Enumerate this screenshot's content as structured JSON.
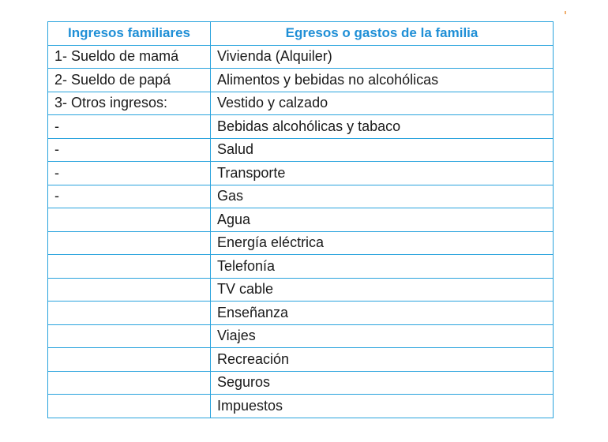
{
  "table": {
    "headers": [
      "Ingresos familiares",
      "Egresos o gastos de la familia"
    ],
    "rows": [
      [
        "1- Sueldo de mamá",
        "Vivienda (Alquiler)"
      ],
      [
        "2- Sueldo de papá",
        "Alimentos y bebidas no alcohólicas"
      ],
      [
        "3- Otros ingresos:",
        "Vestido y calzado"
      ],
      [
        "-",
        "Bebidas alcohólicas y tabaco"
      ],
      [
        "-",
        "Salud"
      ],
      [
        "-",
        "Transporte"
      ],
      [
        "-",
        "Gas"
      ],
      [
        "",
        "Agua"
      ],
      [
        "",
        "Energía eléctrica"
      ],
      [
        "",
        "Telefonía"
      ],
      [
        "",
        "TV cable"
      ],
      [
        "",
        "Enseñanza"
      ],
      [
        "",
        "Viajes"
      ],
      [
        "",
        "Recreación"
      ],
      [
        "",
        "Seguros"
      ],
      [
        "",
        "Impuestos"
      ]
    ]
  },
  "colors": {
    "border": "#29a3dd",
    "header_text": "#1f8fd6",
    "body_text": "#1a1a1a"
  }
}
